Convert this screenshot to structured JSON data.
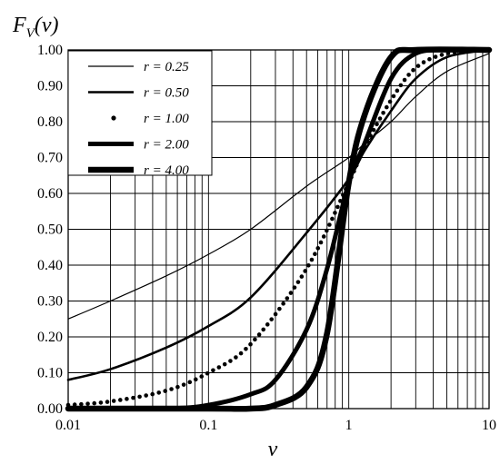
{
  "chart_data": {
    "type": "line",
    "title": "",
    "ylabel": "F_V(v)",
    "ylabel_main": "F",
    "ylabel_sub": "V",
    "ylabel_tail": "(v)",
    "xlabel": "v",
    "x_scale": "log",
    "xlim": [
      0.01,
      10
    ],
    "ylim": [
      0,
      1
    ],
    "grid": true,
    "legend_position": "top-left",
    "x_tick_labels": [
      "0.01",
      "0.1",
      "1",
      "10"
    ],
    "x_ticks": [
      0.01,
      0.1,
      1,
      10
    ],
    "y_tick_labels": [
      "0.00",
      "0.10",
      "0.20",
      "0.30",
      "0.40",
      "0.50",
      "0.60",
      "0.70",
      "0.80",
      "0.90",
      "1.00"
    ],
    "y_ticks": [
      0,
      0.1,
      0.2,
      0.3,
      0.4,
      0.5,
      0.6,
      0.7,
      0.8,
      0.9,
      1.0
    ],
    "series": [
      {
        "name": "r = 0.25",
        "style": "thin-line",
        "x": [
          0.01,
          0.02,
          0.05,
          0.1,
          0.2,
          0.5,
          1,
          1.3,
          2,
          3,
          5,
          10
        ],
        "y": [
          0.25,
          0.3,
          0.37,
          0.43,
          0.5,
          0.62,
          0.7,
          0.74,
          0.8,
          0.87,
          0.94,
          0.99
        ]
      },
      {
        "name": "r = 0.50",
        "style": "medium-line",
        "x": [
          0.01,
          0.02,
          0.05,
          0.1,
          0.2,
          0.5,
          1,
          1.3,
          2,
          3,
          5,
          10
        ],
        "y": [
          0.08,
          0.11,
          0.17,
          0.23,
          0.31,
          0.49,
          0.64,
          0.72,
          0.83,
          0.92,
          0.98,
          1.0
        ]
      },
      {
        "name": "r = 1.00",
        "style": "dots",
        "x": [
          0.01,
          0.02,
          0.05,
          0.1,
          0.2,
          0.5,
          1,
          1.3,
          2,
          3,
          5,
          10
        ],
        "y": [
          0.01,
          0.02,
          0.05,
          0.1,
          0.18,
          0.39,
          0.63,
          0.73,
          0.86,
          0.95,
          0.99,
          1.0
        ]
      },
      {
        "name": "r = 2.00",
        "style": "thick-line",
        "x": [
          0.01,
          0.05,
          0.1,
          0.2,
          0.3,
          0.5,
          0.7,
          1,
          1.3,
          2,
          3,
          5,
          10
        ],
        "y": [
          0.0,
          0.0,
          0.01,
          0.04,
          0.08,
          0.22,
          0.39,
          0.63,
          0.74,
          0.92,
          0.99,
          1.0,
          1.0
        ]
      },
      {
        "name": "r = 4.00",
        "style": "extra-thick-line",
        "x": [
          0.01,
          0.1,
          0.2,
          0.3,
          0.5,
          0.7,
          1,
          1.3,
          2,
          3,
          10
        ],
        "y": [
          0.0,
          0.0,
          0.0,
          0.01,
          0.06,
          0.21,
          0.63,
          0.82,
          0.98,
          1.0,
          1.0
        ]
      }
    ]
  }
}
